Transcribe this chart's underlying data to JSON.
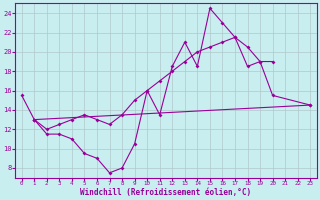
{
  "xlabel": "Windchill (Refroidissement éolien,°C)",
  "bg_color": "#c8eef0",
  "line_color": "#990099",
  "grid_color": "#b0c8cc",
  "xlim": [
    -0.5,
    23.5
  ],
  "ylim": [
    7,
    25
  ],
  "yticks": [
    8,
    10,
    12,
    14,
    16,
    18,
    20,
    22,
    24
  ],
  "xticks": [
    0,
    1,
    2,
    3,
    4,
    5,
    6,
    7,
    8,
    9,
    10,
    11,
    12,
    13,
    14,
    15,
    16,
    17,
    18,
    19,
    20,
    21,
    22,
    23
  ],
  "curve1_x": [
    0,
    1,
    2,
    3,
    4,
    5,
    6,
    7,
    8,
    9,
    10,
    11,
    12,
    13,
    14,
    15,
    16,
    17,
    18,
    19,
    20,
    23
  ],
  "curve1_y": [
    15.5,
    13.0,
    11.5,
    11.5,
    11.0,
    9.5,
    9.0,
    7.5,
    8.0,
    10.5,
    16.0,
    13.5,
    18.5,
    21.0,
    18.5,
    24.5,
    23.0,
    21.5,
    20.5,
    19.0,
    15.5,
    14.5
  ],
  "curve2_x": [
    1,
    2,
    3,
    4,
    5,
    6,
    7,
    8,
    9,
    10,
    11,
    12,
    13,
    14,
    15,
    16,
    17,
    18,
    19,
    20
  ],
  "curve2_y": [
    13.0,
    12.0,
    12.5,
    13.0,
    13.5,
    13.0,
    12.5,
    13.5,
    15.0,
    16.0,
    17.0,
    18.0,
    19.0,
    20.0,
    20.5,
    21.0,
    21.5,
    18.5,
    19.0,
    19.0
  ],
  "curve3_x": [
    1,
    23
  ],
  "curve3_y": [
    13.0,
    14.5
  ]
}
